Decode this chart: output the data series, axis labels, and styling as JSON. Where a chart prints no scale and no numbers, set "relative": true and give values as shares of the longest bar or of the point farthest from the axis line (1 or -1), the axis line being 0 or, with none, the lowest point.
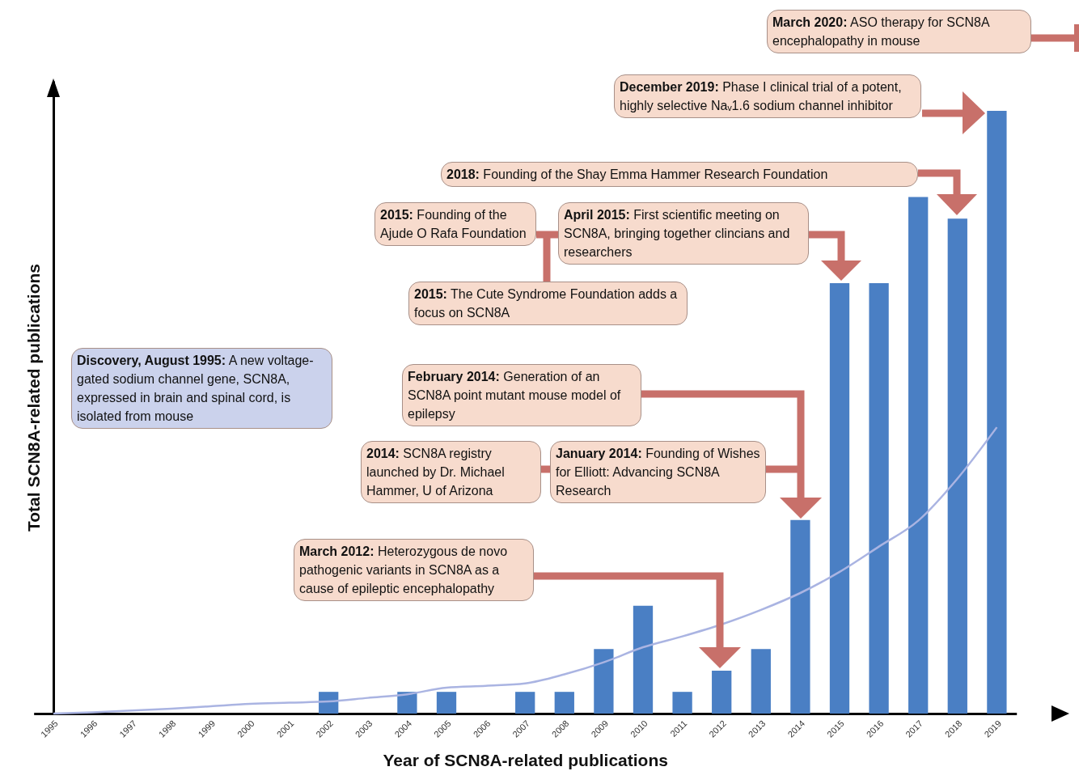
{
  "chart_data": {
    "type": "bar",
    "relative": true,
    "xlabel": "Year of SCN8A-related publications",
    "ylabel": "Total SCN8A-related publications",
    "categories": [
      "1995",
      "1996",
      "1997",
      "1998",
      "1999",
      "2000",
      "2001",
      "2002",
      "2003",
      "2004",
      "2005",
      "2006",
      "2007",
      "2008",
      "2009",
      "2010",
      "2011",
      "2012",
      "2013",
      "2014",
      "2015",
      "2016",
      "2017",
      "2018",
      "2019"
    ],
    "series": [
      {
        "color": "#4a7fc4",
        "values": [
          0,
          0,
          0,
          0,
          0,
          0,
          0,
          0.036,
          0,
          0.036,
          0.036,
          0,
          0.036,
          0.036,
          0.107,
          0.179,
          0.036,
          0.071,
          0.107,
          0.321,
          0.714,
          0.714,
          0.857,
          0.821,
          1
        ]
      },
      {
        "type": "line",
        "color": "#aab4e2",
        "values": [
          0,
          0.002,
          0.005,
          0.008,
          0.012,
          0.016,
          0.018,
          0.02,
          0.026,
          0.032,
          0.043,
          0.046,
          0.05,
          0.065,
          0.085,
          0.11,
          0.128,
          0.148,
          0.172,
          0.2,
          0.235,
          0.277,
          0.32,
          0.39,
          0.475
        ]
      }
    ],
    "annotations": [
      "Discovery, August 1995: A new voltage-gated sodium channel gene, SCN8A, expressed in brain and spinal cord, is isolated from mouse",
      "March 2012: Heterozygous de novo pathogenic variants in SCN8A as a cause of epileptic encephalopathy",
      "2014: SCN8A registry launched by Dr. Michael Hammer, U of Arizona",
      "January 2014: Founding of Wishes for Elliott: Advancing SCN8A Research",
      "February 2014: Generation of an SCN8A point mutant mouse model of epilepsy",
      "2015: Founding of the Ajude O Rafa Foundation",
      "2015: The Cute Syndrome Foundation adds a focus on SCN8A",
      "April 2015: First scientific meeting on SCN8A, bringing together clincians and researchers",
      "2018: Founding of the Shay Emma Hammer Research Foundation",
      "December 2019: Phase I clinical trial of a potent, highly selective Naᵥ1.6 sodium channel inhibitor",
      "March 2020: ASO therapy for SCN8A encephalopathy in mouse"
    ]
  }
}
